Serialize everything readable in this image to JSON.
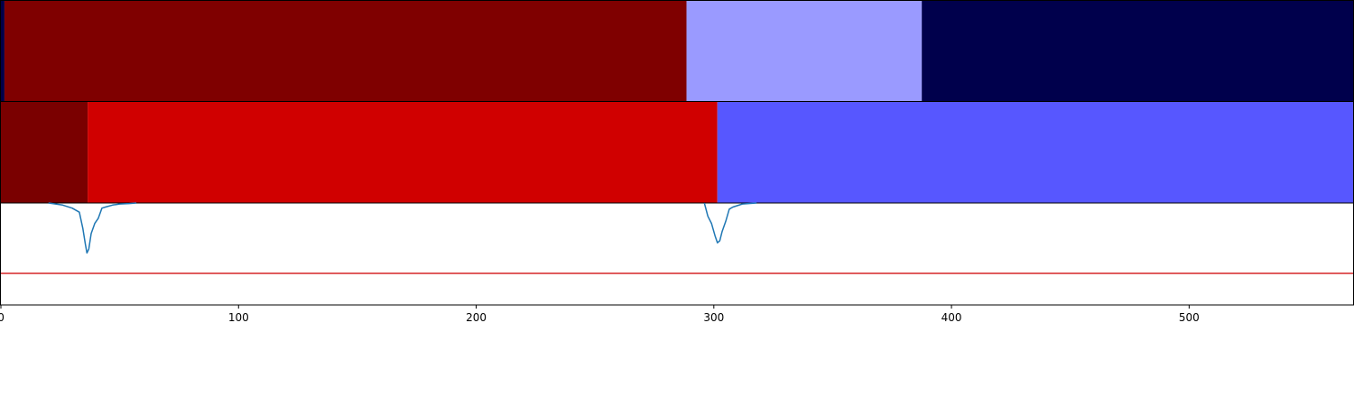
{
  "chart_data": {
    "type": "heatmap",
    "title": "",
    "xlabel": "",
    "ylabel": "",
    "xlim": [
      0,
      569
    ],
    "x_ticks": [
      0,
      100,
      200,
      300,
      400,
      500
    ],
    "segment_rows": [
      {
        "segments": [
          {
            "start": 0,
            "end": 1.5,
            "color": "#000048"
          },
          {
            "start": 1.5,
            "end": 288.5,
            "color": "#7f0000"
          },
          {
            "start": 288.5,
            "end": 387.5,
            "color": "#9a9aff"
          },
          {
            "start": 387.5,
            "end": 569,
            "color": "#00004c"
          }
        ]
      },
      {
        "segments": [
          {
            "start": 0,
            "end": 36.5,
            "color": "#7a0000"
          },
          {
            "start": 36.5,
            "end": 301.5,
            "color": "#d00000"
          },
          {
            "start": 301.5,
            "end": 569,
            "color": "#5757ff"
          }
        ]
      }
    ],
    "line_panel": {
      "ylim": [
        -1.0,
        0.0
      ],
      "threshold": -0.69,
      "threshold_color": "#d62728",
      "line_color": "#1f77b4",
      "series": [
        {
          "x": [
            20,
            26,
            30,
            33,
            34.5,
            35.5,
            36.2,
            37,
            38,
            39.5,
            41,
            42.5,
            44,
            47,
            50,
            54,
            57
          ],
          "y": [
            0.0,
            -0.02,
            -0.05,
            -0.09,
            -0.25,
            -0.4,
            -0.49,
            -0.45,
            -0.3,
            -0.2,
            -0.15,
            -0.05,
            -0.04,
            -0.02,
            -0.01,
            -0.005,
            0.0
          ]
        },
        {
          "x": [
            296,
            297.5,
            299,
            300.5,
            301.5,
            302.5,
            303.5,
            305,
            306.5,
            308,
            312,
            318
          ],
          "y": [
            0.0,
            -0.13,
            -0.2,
            -0.32,
            -0.39,
            -0.37,
            -0.28,
            -0.18,
            -0.06,
            -0.04,
            -0.01,
            0.0
          ]
        }
      ]
    }
  }
}
